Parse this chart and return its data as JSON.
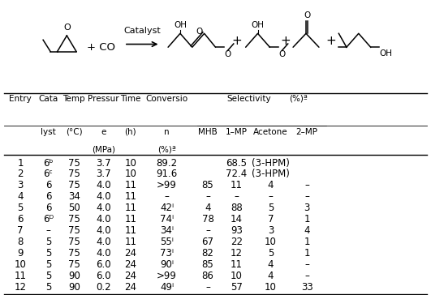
{
  "rows": [
    [
      "1",
      "6ᵇ",
      "75",
      "3.7",
      "10",
      "89.2",
      "",
      "68.5",
      "(3-HPM)",
      ""
    ],
    [
      "2",
      "6ᶜ",
      "75",
      "3.7",
      "10",
      "91.6",
      "",
      "72.4",
      "(3-HPM)",
      ""
    ],
    [
      "3",
      "6",
      "75",
      "4.0",
      "11",
      ">99",
      "85",
      "11",
      "4",
      "–"
    ],
    [
      "4",
      "6",
      "34",
      "4.0",
      "11",
      "–",
      "–",
      "–",
      "–",
      "–"
    ],
    [
      "5",
      "6",
      "50",
      "4.0",
      "11",
      "42ⁱ",
      "4",
      "88",
      "5",
      "3"
    ],
    [
      "6",
      "6ᴰ",
      "75",
      "4.0",
      "11",
      "74ⁱ",
      "78",
      "14",
      "7",
      "1"
    ],
    [
      "7",
      "–",
      "75",
      "4.0",
      "11",
      "34ⁱ",
      "–",
      "93",
      "3",
      "4"
    ],
    [
      "8",
      "5",
      "75",
      "4.0",
      "11",
      "55ⁱ",
      "67",
      "22",
      "10",
      "1"
    ],
    [
      "9",
      "5",
      "75",
      "4.0",
      "24",
      "73ⁱ",
      "82",
      "12",
      "5",
      "1"
    ],
    [
      "10",
      "5",
      "75",
      "6.0",
      "24",
      "90ⁱ",
      "85",
      "11",
      "4",
      "–"
    ],
    [
      "11",
      "5",
      "90",
      "6.0",
      "24",
      ">99",
      "86",
      "10",
      "4",
      "–"
    ],
    [
      "12",
      "5",
      "90",
      "0.2",
      "24",
      "49ⁱ",
      "–",
      "57",
      "10",
      "33"
    ]
  ],
  "background_color": "#ffffff"
}
